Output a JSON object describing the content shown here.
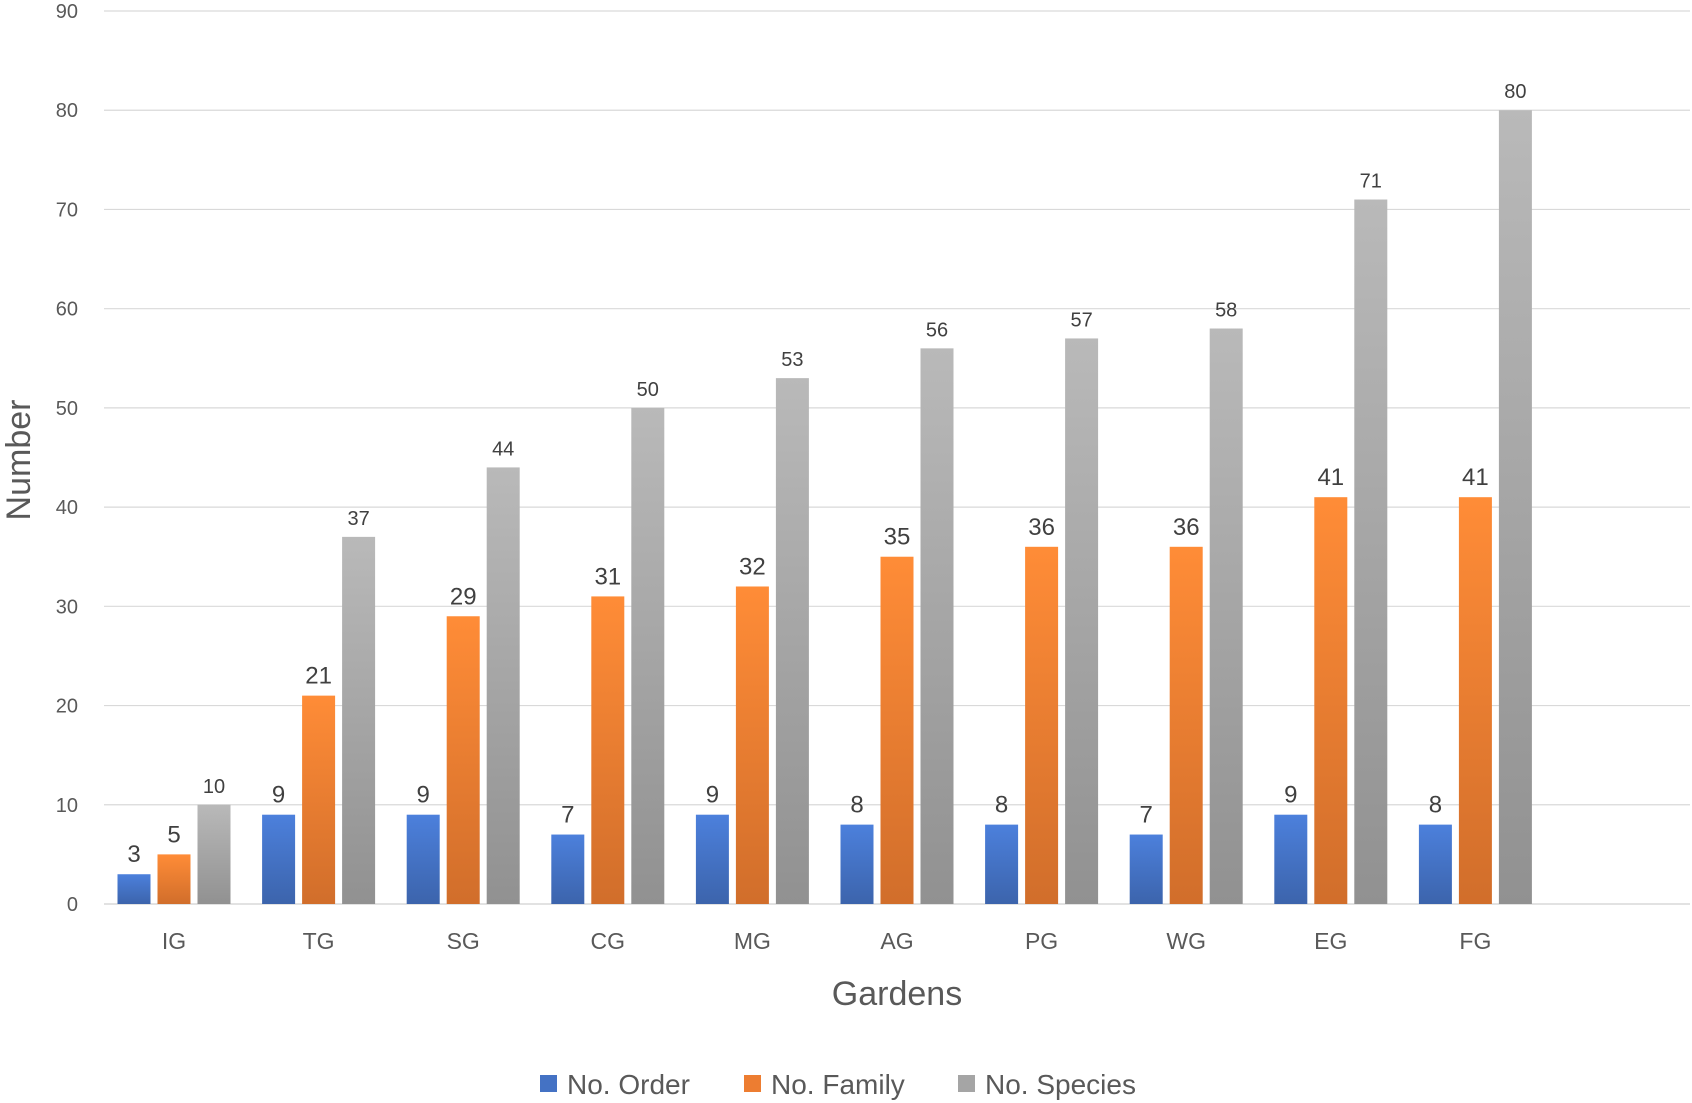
{
  "chart_data": {
    "type": "bar",
    "title": "",
    "xlabel": "Gardens",
    "ylabel": "Number",
    "ylim": [
      0,
      90
    ],
    "yticks": [
      0,
      10,
      20,
      30,
      40,
      50,
      60,
      70,
      80,
      90
    ],
    "grid": true,
    "legend_position": "bottom",
    "categories": [
      "IG",
      "TG",
      "SG",
      "CG",
      "MG",
      "AG",
      "PG",
      "WG",
      "EG",
      "FG"
    ],
    "series": [
      {
        "name": "No. Order",
        "color": "#4472c4",
        "values": [
          3,
          9,
          9,
          7,
          9,
          8,
          8,
          7,
          9,
          8
        ]
      },
      {
        "name": "No. Family",
        "color": "#ed7d31",
        "values": [
          5,
          21,
          29,
          31,
          32,
          35,
          36,
          36,
          41,
          41
        ]
      },
      {
        "name": "No. Species",
        "color": "#a5a5a5",
        "values": [
          10,
          37,
          44,
          50,
          53,
          56,
          57,
          58,
          71,
          80
        ]
      }
    ]
  }
}
